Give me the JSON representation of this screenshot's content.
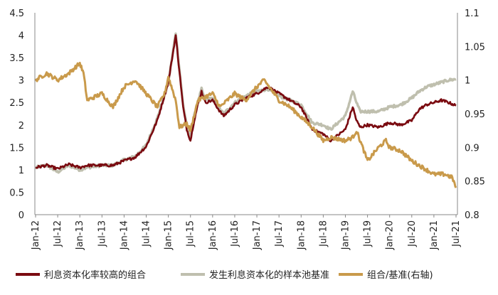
{
  "chart_data": {
    "type": "line",
    "x_ticks": [
      "Jan-12",
      "Jul-12",
      "Jan-13",
      "Jul-13",
      "Jan-14",
      "Jul-14",
      "Jan-15",
      "Jul-15",
      "Jan-16",
      "Jul-16",
      "Jan-17",
      "Jul-17",
      "Jan-18",
      "Jul-18",
      "Jan-19",
      "Jul-19",
      "Jan-20",
      "Jul-20",
      "Jan-21",
      "Jul-21"
    ],
    "left_axis": {
      "min": 0,
      "max": 4.5,
      "ticks": [
        "0",
        "0.5",
        "1",
        "1.5",
        "2",
        "2.5",
        "3",
        "3.5",
        "4",
        "4.5"
      ]
    },
    "right_axis": {
      "min": 0.8,
      "max": 1.1,
      "ticks": [
        "0.8",
        "0.85",
        "0.9",
        "0.95",
        "1",
        "1.05",
        "1.1"
      ]
    },
    "grid": false,
    "legend_position": "bottom",
    "series": [
      {
        "name": "利息资本化率较高的组合",
        "axis": "left",
        "color": "#7a0a10",
        "months": [
          0,
          3,
          6,
          9,
          12,
          14,
          18,
          21,
          24,
          27,
          30,
          33,
          36,
          38,
          40,
          41,
          42,
          43,
          44,
          45,
          46,
          48,
          50,
          51,
          54,
          57,
          60,
          63,
          66,
          69,
          72,
          75,
          78,
          80,
          84,
          86,
          87,
          88,
          90,
          93,
          96,
          99,
          102,
          104,
          106,
          108,
          110,
          112,
          114
        ],
        "values": [
          1.05,
          1.1,
          1.02,
          1.12,
          1.05,
          1.1,
          1.1,
          1.1,
          1.2,
          1.28,
          1.52,
          2.1,
          2.95,
          4.0,
          2.4,
          1.9,
          1.65,
          2.1,
          2.45,
          2.75,
          2.5,
          2.55,
          2.3,
          2.2,
          2.45,
          2.6,
          2.7,
          2.85,
          2.7,
          2.55,
          2.4,
          1.9,
          1.8,
          1.65,
          1.9,
          2.4,
          2.1,
          1.95,
          2.0,
          1.95,
          2.05,
          2.0,
          2.1,
          2.35,
          2.45,
          2.5,
          2.55,
          2.5,
          2.43
        ]
      },
      {
        "name": "发生利息资本化的样本池基准",
        "axis": "left",
        "color": "#bfbfae",
        "months": [
          0,
          3,
          6,
          9,
          12,
          14,
          18,
          21,
          24,
          27,
          30,
          33,
          36,
          38,
          40,
          41,
          42,
          43,
          44,
          45,
          46,
          48,
          50,
          51,
          54,
          57,
          60,
          63,
          66,
          69,
          72,
          75,
          78,
          80,
          84,
          86,
          87,
          88,
          90,
          93,
          96,
          99,
          102,
          104,
          106,
          108,
          110,
          112,
          114
        ],
        "values": [
          1.05,
          1.1,
          0.95,
          1.1,
          1.0,
          1.05,
          1.1,
          1.1,
          1.22,
          1.3,
          1.55,
          2.15,
          2.95,
          4.05,
          2.45,
          2.0,
          1.7,
          2.2,
          2.5,
          2.8,
          2.55,
          2.6,
          2.35,
          2.25,
          2.5,
          2.65,
          2.75,
          2.8,
          2.65,
          2.55,
          2.45,
          2.05,
          2.0,
          1.9,
          2.2,
          2.75,
          2.5,
          2.3,
          2.3,
          2.3,
          2.4,
          2.45,
          2.6,
          2.75,
          2.85,
          2.9,
          2.95,
          3.0,
          3.02
        ]
      },
      {
        "name": "组合/基准(右轴)",
        "axis": "right",
        "color": "#c99a4b",
        "months": [
          0,
          3,
          6,
          9,
          12,
          13,
          14,
          18,
          21,
          24,
          27,
          30,
          33,
          35,
          36,
          38,
          39,
          41,
          42,
          44,
          48,
          50,
          54,
          57,
          60,
          62,
          66,
          69,
          72,
          75,
          78,
          80,
          84,
          86,
          87,
          88,
          90,
          93,
          95,
          96,
          99,
          102,
          105,
          108,
          111,
          113,
          114
        ],
        "values": [
          1.0,
          1.01,
          1.0,
          1.01,
          1.025,
          1.01,
          0.97,
          0.98,
          0.96,
          0.99,
          1.0,
          0.98,
          0.96,
          0.98,
          1.005,
          0.97,
          0.93,
          0.935,
          0.925,
          0.97,
          0.98,
          0.96,
          0.98,
          0.97,
          0.99,
          1.0,
          0.97,
          0.96,
          0.945,
          0.93,
          0.91,
          0.915,
          0.91,
          0.915,
          0.925,
          0.91,
          0.88,
          0.9,
          0.91,
          0.9,
          0.895,
          0.88,
          0.87,
          0.86,
          0.86,
          0.855,
          0.84
        ]
      }
    ]
  }
}
